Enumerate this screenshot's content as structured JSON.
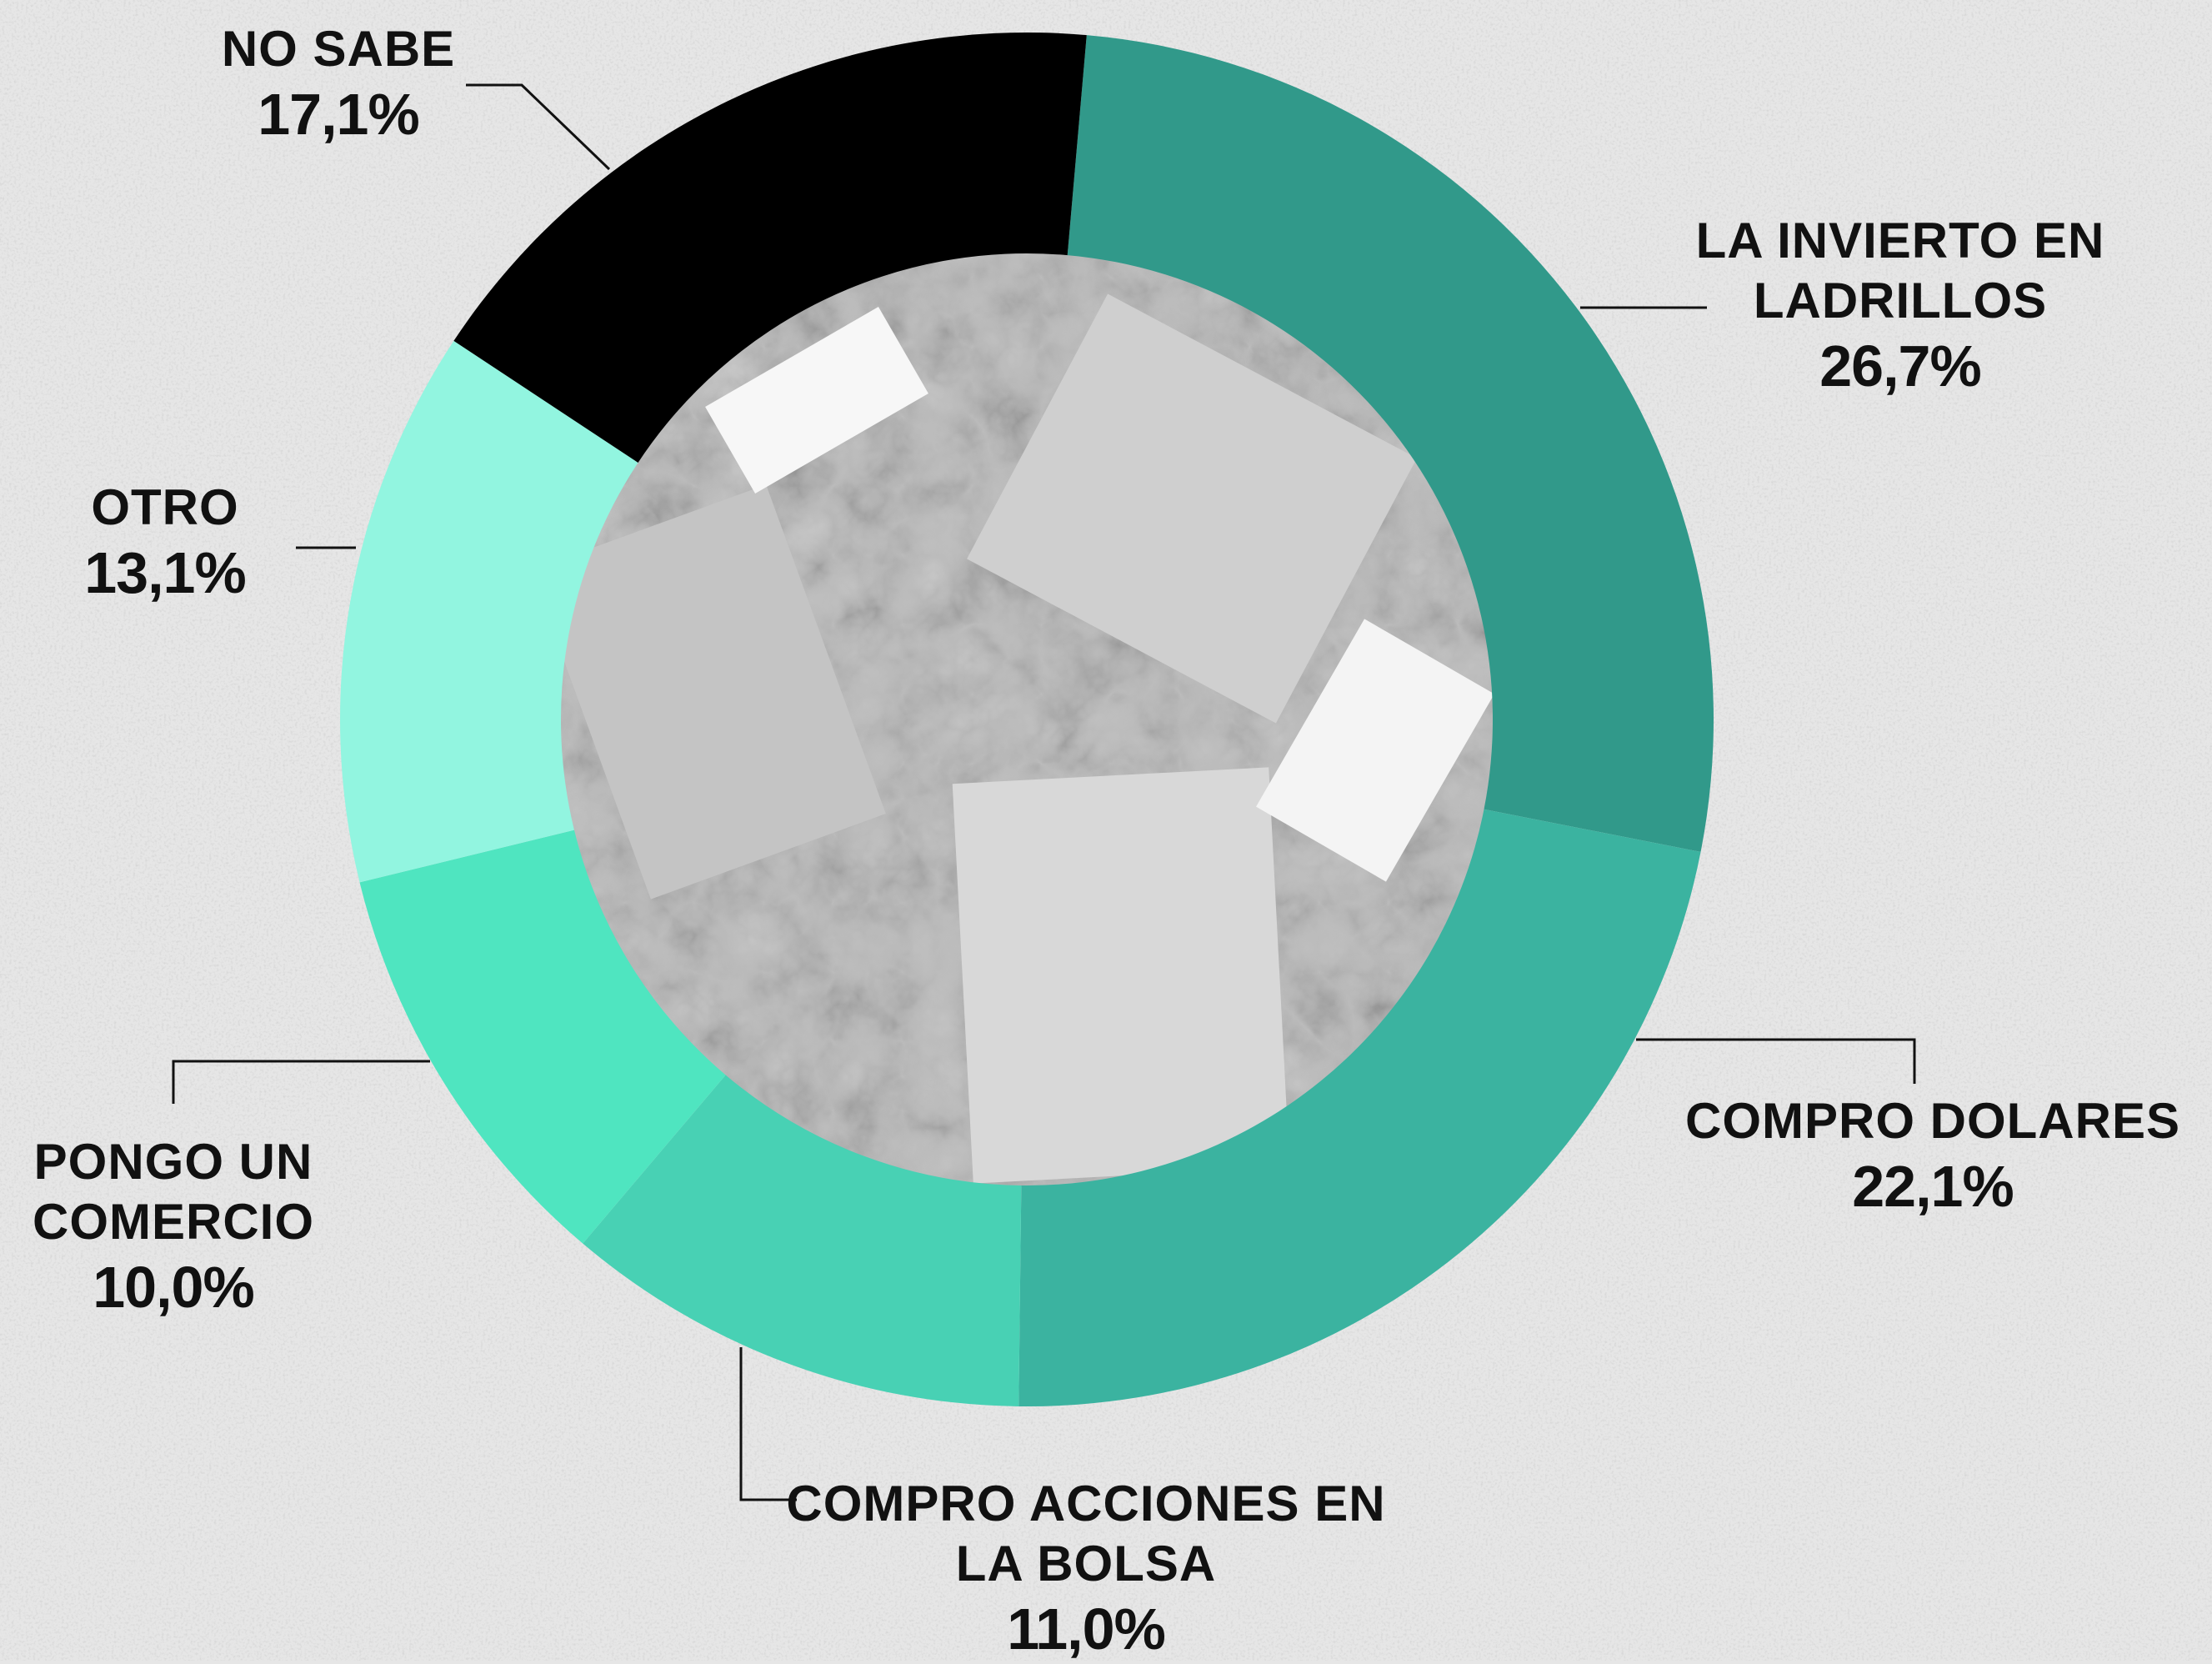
{
  "chart_data": {
    "type": "donut",
    "categories": [
      "LA INVIERTO EN LADRILLOS",
      "COMPRO DOLARES",
      "COMPRO ACCIONES EN LA BOLSA",
      "PONGO UN COMERCIO",
      "OTRO",
      "NO SABE"
    ],
    "values": [
      26.7,
      22.1,
      11.0,
      10.0,
      13.1,
      17.1
    ],
    "value_labels": [
      "26,7%",
      "22,1%",
      "11,0%",
      "10,0%",
      "13,1%",
      "17,1%"
    ],
    "colors": [
      "#31998a",
      "#3bb3a0",
      "#48d1b4",
      "#4fe5c0",
      "#92f5e0",
      "#000000"
    ]
  }
}
